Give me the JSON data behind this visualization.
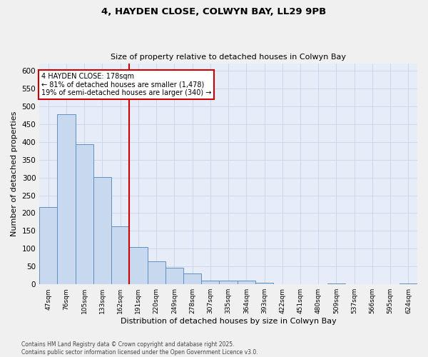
{
  "title_line1": "4, HAYDEN CLOSE, COLWYN BAY, LL29 9PB",
  "title_line2": "Size of property relative to detached houses in Colwyn Bay",
  "xlabel": "Distribution of detached houses by size in Colwyn Bay",
  "ylabel": "Number of detached properties",
  "categories": [
    "47sqm",
    "76sqm",
    "105sqm",
    "133sqm",
    "162sqm",
    "191sqm",
    "220sqm",
    "249sqm",
    "278sqm",
    "307sqm",
    "335sqm",
    "364sqm",
    "393sqm",
    "422sqm",
    "451sqm",
    "480sqm",
    "509sqm",
    "537sqm",
    "566sqm",
    "595sqm",
    "624sqm"
  ],
  "values": [
    218,
    478,
    393,
    301,
    163,
    105,
    65,
    46,
    30,
    10,
    10,
    10,
    5,
    0,
    0,
    0,
    2,
    0,
    0,
    0,
    3
  ],
  "bar_color": "#c8d8ee",
  "bar_edge_color": "#6090c0",
  "vline_x": 4.5,
  "vline_color": "#cc0000",
  "annotation_line1": "4 HAYDEN CLOSE: 178sqm",
  "annotation_line2": "← 81% of detached houses are smaller (1,478)",
  "annotation_line3": "19% of semi-detached houses are larger (340) →",
  "ylim_max": 620,
  "ytick_step": 50,
  "grid_color": "#c8d4e8",
  "plot_bg_color": "#e6ecf8",
  "fig_bg_color": "#f0f0f0",
  "footer_line1": "Contains HM Land Registry data © Crown copyright and database right 2025.",
  "footer_line2": "Contains public sector information licensed under the Open Government Licence v3.0."
}
